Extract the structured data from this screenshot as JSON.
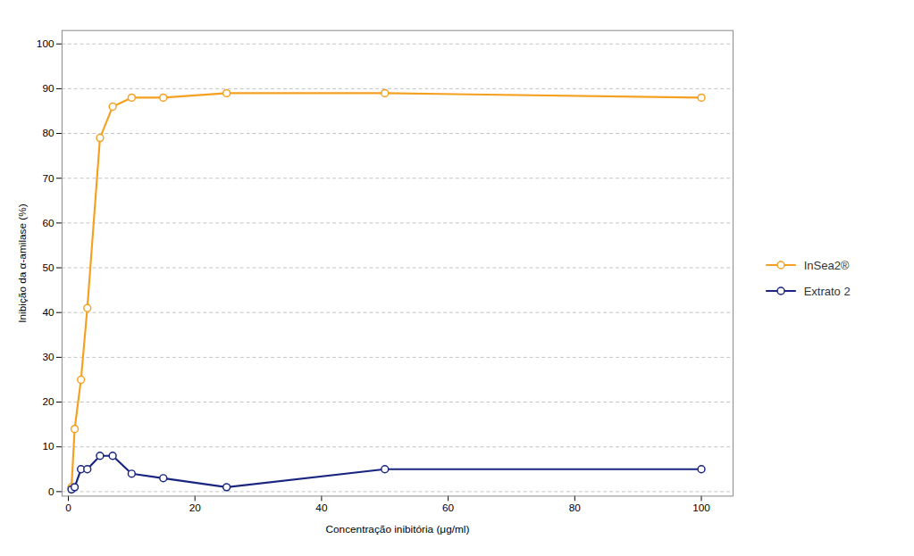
{
  "chart_data": {
    "type": "line",
    "xlabel": "Concentração inibitória (μg/ml)",
    "ylabel": "Inibição da α-amilase (%)",
    "x": [
      0.5,
      1,
      2,
      3,
      5,
      7,
      10,
      15,
      25,
      50,
      100
    ],
    "series": [
      {
        "name": "InSea2®",
        "color": "#F5A020",
        "marker": "circle",
        "values": [
          1,
          14,
          25,
          41,
          79,
          86,
          88,
          88,
          89,
          89,
          88
        ]
      },
      {
        "name": "Extrato 2",
        "color": "#1A2580",
        "marker": "circle",
        "values": [
          0.5,
          1,
          5,
          5,
          8,
          8,
          4,
          3,
          1,
          5,
          5
        ]
      }
    ],
    "xlim": [
      -1,
      105
    ],
    "ylim": [
      -1,
      103
    ],
    "xticks": [
      0,
      20,
      40,
      60,
      80,
      100
    ],
    "yticks": [
      0,
      10,
      20,
      30,
      40,
      50,
      60,
      70,
      80,
      90,
      100
    ],
    "grid": true,
    "legend": "right"
  }
}
